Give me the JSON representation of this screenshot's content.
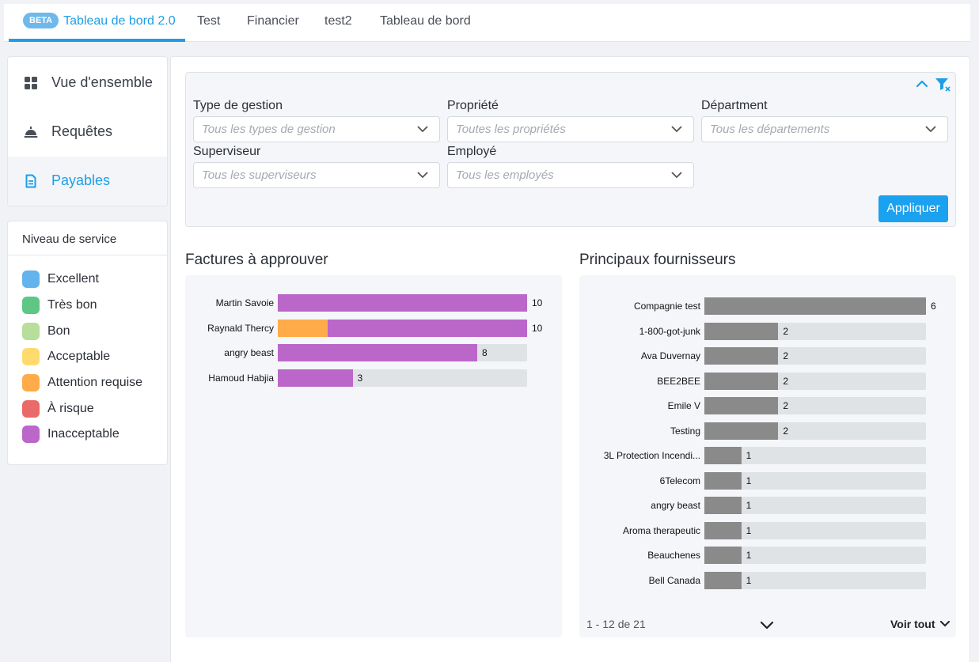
{
  "tabs": [
    {
      "beta": "BETA",
      "label": "Tableau de bord 2.0",
      "active": true
    },
    {
      "label": "Test"
    },
    {
      "label": "Financier"
    },
    {
      "label": "test2"
    },
    {
      "label": "Tableau de bord"
    }
  ],
  "nav": [
    {
      "label": "Vue d'ensemble",
      "icon": "grid-icon"
    },
    {
      "label": "Requêtes",
      "icon": "service-bell-icon"
    },
    {
      "label": "Payables",
      "icon": "document-icon",
      "active": true
    }
  ],
  "legend": {
    "title": "Niveau de service",
    "items": [
      {
        "label": "Excellent",
        "color": "#63b3ed"
      },
      {
        "label": "Très bon",
        "color": "#5ec785"
      },
      {
        "label": "Bon",
        "color": "#b7de9a"
      },
      {
        "label": "Acceptable",
        "color": "#ffdb6e"
      },
      {
        "label": "Attention requise",
        "color": "#ffab4a"
      },
      {
        "label": "À risque",
        "color": "#ea6a6a"
      },
      {
        "label": "Inacceptable",
        "color": "#bb66c9"
      }
    ]
  },
  "filters": {
    "type_de_gestion": {
      "label": "Type de gestion",
      "placeholder": "Tous les types de gestion"
    },
    "propriete": {
      "label": "Propriété",
      "placeholder": "Toutes les propriétés"
    },
    "department": {
      "label": "Départment",
      "placeholder": "Tous les départements"
    },
    "superviseur": {
      "label": "Superviseur",
      "placeholder": "Tous les superviseurs"
    },
    "employe": {
      "label": "Employé",
      "placeholder": "Tous les employés"
    },
    "apply_label": "Appliquer"
  },
  "colors": {
    "accent": "#1e9ee6",
    "inacceptable": "#bb66c9",
    "attention": "#ffab4a",
    "supplier_bar": "#8a8a8a",
    "track": "#e0e3e6"
  },
  "chart_data": [
    {
      "type": "bar",
      "orientation": "horizontal",
      "stacked": true,
      "title": "Factures à approuver",
      "max": 10,
      "categories": [
        "Martin Savoie",
        "Raynald Thercy",
        "angry beast",
        "Hamoud Habjia"
      ],
      "totals": [
        10,
        10,
        8,
        3
      ],
      "series": [
        {
          "name": "Attention requise",
          "color": "#ffab4a",
          "values": [
            0,
            2,
            0,
            0
          ]
        },
        {
          "name": "Inacceptable",
          "color": "#bb66c9",
          "values": [
            10,
            8,
            8,
            3
          ]
        }
      ]
    },
    {
      "type": "bar",
      "orientation": "horizontal",
      "title": "Principaux fournisseurs",
      "max": 6,
      "color": "#8a8a8a",
      "categories": [
        "Compagnie test",
        "1-800-got-junk",
        "Ava Duvernay",
        "BEE2BEE",
        "Emile V",
        "Testing",
        "3L Protection Incendi...",
        "6Telecom",
        "angry beast",
        "Aroma therapeutic",
        "Beauchenes",
        "Bell Canada"
      ],
      "values": [
        6,
        2,
        2,
        2,
        2,
        2,
        1,
        1,
        1,
        1,
        1,
        1
      ]
    }
  ],
  "suppliers_footer": {
    "pager": "1 - 12 de 21",
    "see_all": "Voir tout"
  }
}
